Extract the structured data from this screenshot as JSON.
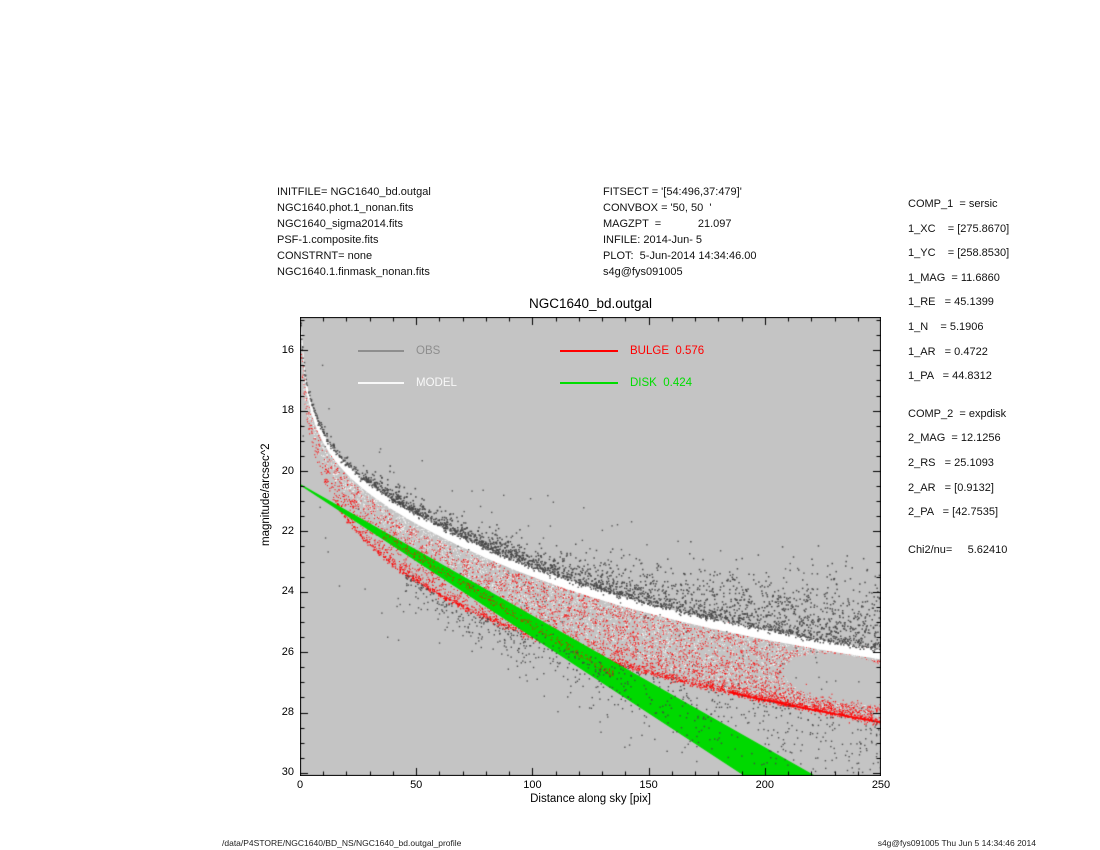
{
  "header": {
    "left_lines": [
      "INITFILE= NGC1640_bd.outgal",
      "NGC1640.phot.1_nonan.fits",
      "NGC1640_sigma2014.fits",
      "PSF-1.composite.fits",
      "CONSTRNT= none",
      "NGC1640.1.finmask_nonan.fits"
    ],
    "center_lines": [
      "FITSECT = '[54:496,37:479]'",
      "CONVBOX = '50, 50  '",
      "MAGZPT  =            21.097",
      "INFILE: 2014-Jun- 5",
      "PLOT:  5-Jun-2014 14:34:46.00",
      "s4g@fys091005"
    ]
  },
  "fit_params": {
    "comp1_lines": [
      "COMP_1  = sersic",
      "1_XC    = [275.8670]",
      "1_YC    = [258.8530]",
      "1_MAG  = 11.6860",
      "1_RE   = 45.1399",
      "1_N    = 5.1906",
      "1_AR   = 0.4722",
      "1_PA   = 44.8312"
    ],
    "comp2_lines": [
      "COMP_2  = expdisk",
      "2_MAG  = 12.1256",
      "2_RS   = 25.1093",
      "2_AR   = [0.9132]",
      "2_PA   = [42.7535]"
    ],
    "chi2_line": "Chi2/nu=     5.62410"
  },
  "footer": {
    "left": "/data/P4STORE/NGC1640/BD_NS/NGC1640_bd.outgal_profile",
    "right": "s4g@fys091005  Thu Jun  5 14:34:46 2014"
  },
  "chart_data": {
    "type": "scatter",
    "title": "NGC1640_bd.outgal",
    "xlabel": "Distance along sky [pix]",
    "ylabel": "magnitude/arcsec^2",
    "xlim": [
      0,
      250
    ],
    "ylim": [
      30.1,
      14.9
    ],
    "x_ticks": [
      0,
      50,
      100,
      150,
      200,
      250
    ],
    "y_ticks": [
      16,
      18,
      20,
      22,
      24,
      26,
      28,
      30
    ],
    "plot_bg": "#c4c4c4",
    "frame_color": "#000000",
    "legend": [
      {
        "label": "OBS",
        "series": "obs",
        "color": "#8e8e8e"
      },
      {
        "label": "MODEL",
        "series": "model",
        "color": "#f8f8f8"
      },
      {
        "label": "BULGE  0.576",
        "series": "bulge",
        "color": "#ff0000",
        "fraction": 0.576
      },
      {
        "label": "DISK  0.424",
        "series": "disk",
        "color": "#00dd00",
        "fraction": 0.424
      }
    ],
    "point_colors": {
      "obs": "#464646",
      "model": "#ffffff",
      "bulge": "#ff0000",
      "disk_fill": "#00d900"
    },
    "profiles": {
      "bulge_sersic": {
        "mu_e": 21.7,
        "re": 45.1399,
        "n": 5.1906,
        "axis_ratio": 0.4722,
        "coef": 10.909
      },
      "disk_exponential": {
        "mu0": 20.45,
        "slope_major": 0.0433,
        "slope_minor": 0.05
      },
      "mask_hole": {
        "x": 234,
        "mag": 26.9,
        "rx": 26,
        "ry_mag": 0.8,
        "angle_deg": 9
      }
    }
  }
}
